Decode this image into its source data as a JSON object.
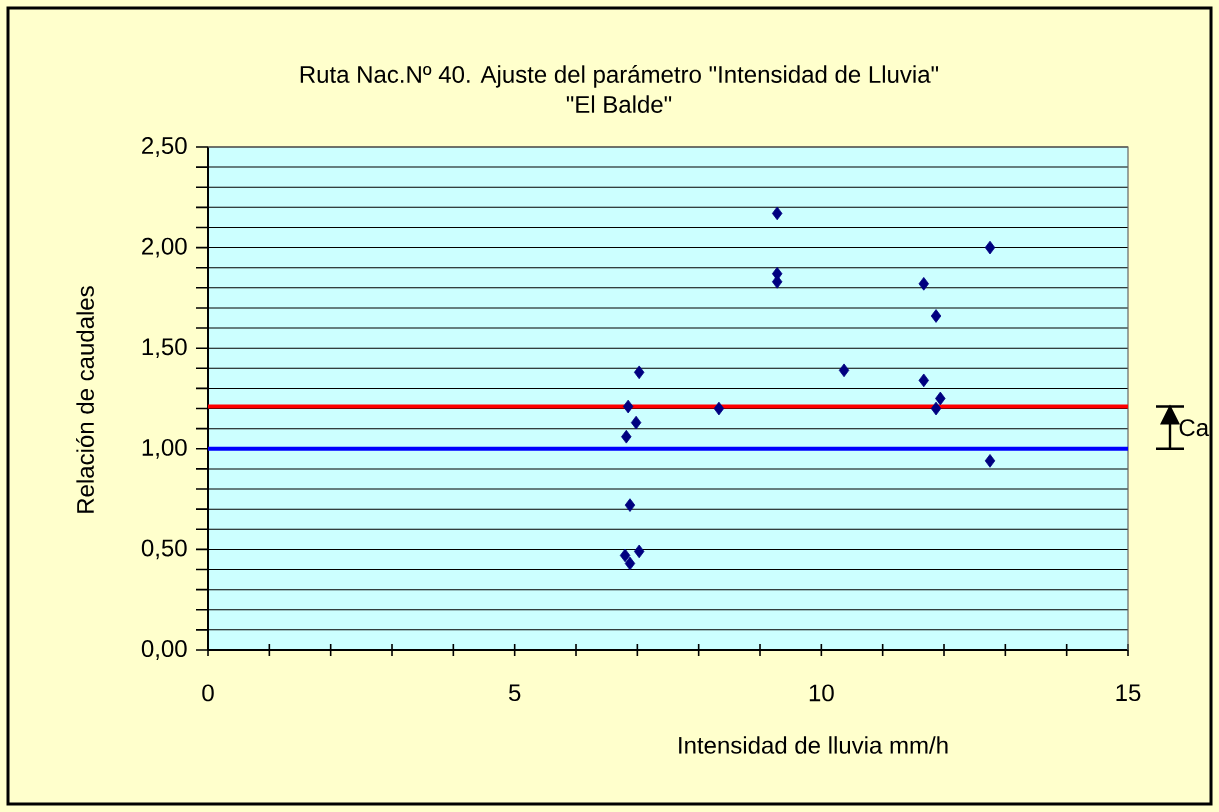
{
  "chart_data": {
    "type": "scatter",
    "title": "Ruta Nac.Nº 40. Ajuste del parámetro \"Intensidad de Lluvia\"",
    "subtitle": "\"El Balde\"",
    "xlabel": "Intensidad de lluvia mm/h",
    "ylabel": "Relación de caudales",
    "series": [
      {
        "color": "#000080",
        "x": [
          9.28,
          9.28,
          9.28,
          12.75,
          11.67,
          11.87,
          7.03,
          10.37,
          11.67,
          11.94,
          11.87,
          6.85,
          8.33,
          6.98,
          6.82,
          12.75,
          6.88,
          6.8,
          7.03,
          6.88
        ],
        "values": [
          2.17,
          1.87,
          1.83,
          2.0,
          1.82,
          1.66,
          1.38,
          1.39,
          1.34,
          1.25,
          1.2,
          1.21,
          1.2,
          1.13,
          1.06,
          0.94,
          0.72,
          0.47,
          0.49,
          0.43
        ]
      }
    ],
    "marker": "diamond",
    "xlim": [
      0,
      15
    ],
    "xticks": [
      0,
      {
        "value": 1,
        "label": null
      },
      {
        "value": 2,
        "label": null
      },
      {
        "value": 3,
        "label": null
      },
      {
        "value": 4,
        "label": null
      },
      5,
      {
        "value": 6,
        "label": null
      },
      {
        "value": 7,
        "label": null
      },
      {
        "value": 8,
        "label": null
      },
      {
        "value": 9,
        "label": null
      },
      10,
      {
        "value": 11,
        "label": null
      },
      {
        "value": 12,
        "label": null
      },
      {
        "value": 13,
        "label": null
      },
      {
        "value": 14,
        "label": null
      },
      15
    ],
    "ylim": [
      0,
      2.5
    ],
    "yticks": [
      {
        "value": 0,
        "label": "0,00"
      },
      {
        "value": 0.1,
        "label": null
      },
      {
        "value": 0.2,
        "label": null
      },
      {
        "value": 0.3,
        "label": null
      },
      {
        "value": 0.4,
        "label": null
      },
      {
        "value": 0.5,
        "label": "0,50"
      },
      {
        "value": 0.6,
        "label": null
      },
      {
        "value": 0.7,
        "label": null
      },
      {
        "value": 0.8,
        "label": null
      },
      {
        "value": 0.9,
        "label": null
      },
      {
        "value": 1.0,
        "label": "1,00"
      },
      {
        "value": 1.1,
        "label": null
      },
      {
        "value": 1.2,
        "label": null
      },
      {
        "value": 1.3,
        "label": null
      },
      {
        "value": 1.4,
        "label": null
      },
      {
        "value": 1.5,
        "label": "1,50"
      },
      {
        "value": 1.6,
        "label": null
      },
      {
        "value": 1.7,
        "label": null
      },
      {
        "value": 1.8,
        "label": null
      },
      {
        "value": 1.9,
        "label": null
      },
      {
        "value": 2.0,
        "label": "2,00"
      },
      {
        "value": 2.1,
        "label": null
      },
      {
        "value": 2.2,
        "label": null
      },
      {
        "value": 2.3,
        "label": null
      },
      {
        "value": 2.4,
        "label": null
      },
      {
        "value": 2.5,
        "label": "2,50"
      }
    ],
    "grid": "y",
    "ref_lines": [
      {
        "axis": "y",
        "value": 1.21,
        "color": "#ff0000"
      },
      {
        "axis": "y",
        "value": 1.0,
        "color": "#0000ff"
      }
    ],
    "annotations": [
      "Ca"
    ]
  }
}
